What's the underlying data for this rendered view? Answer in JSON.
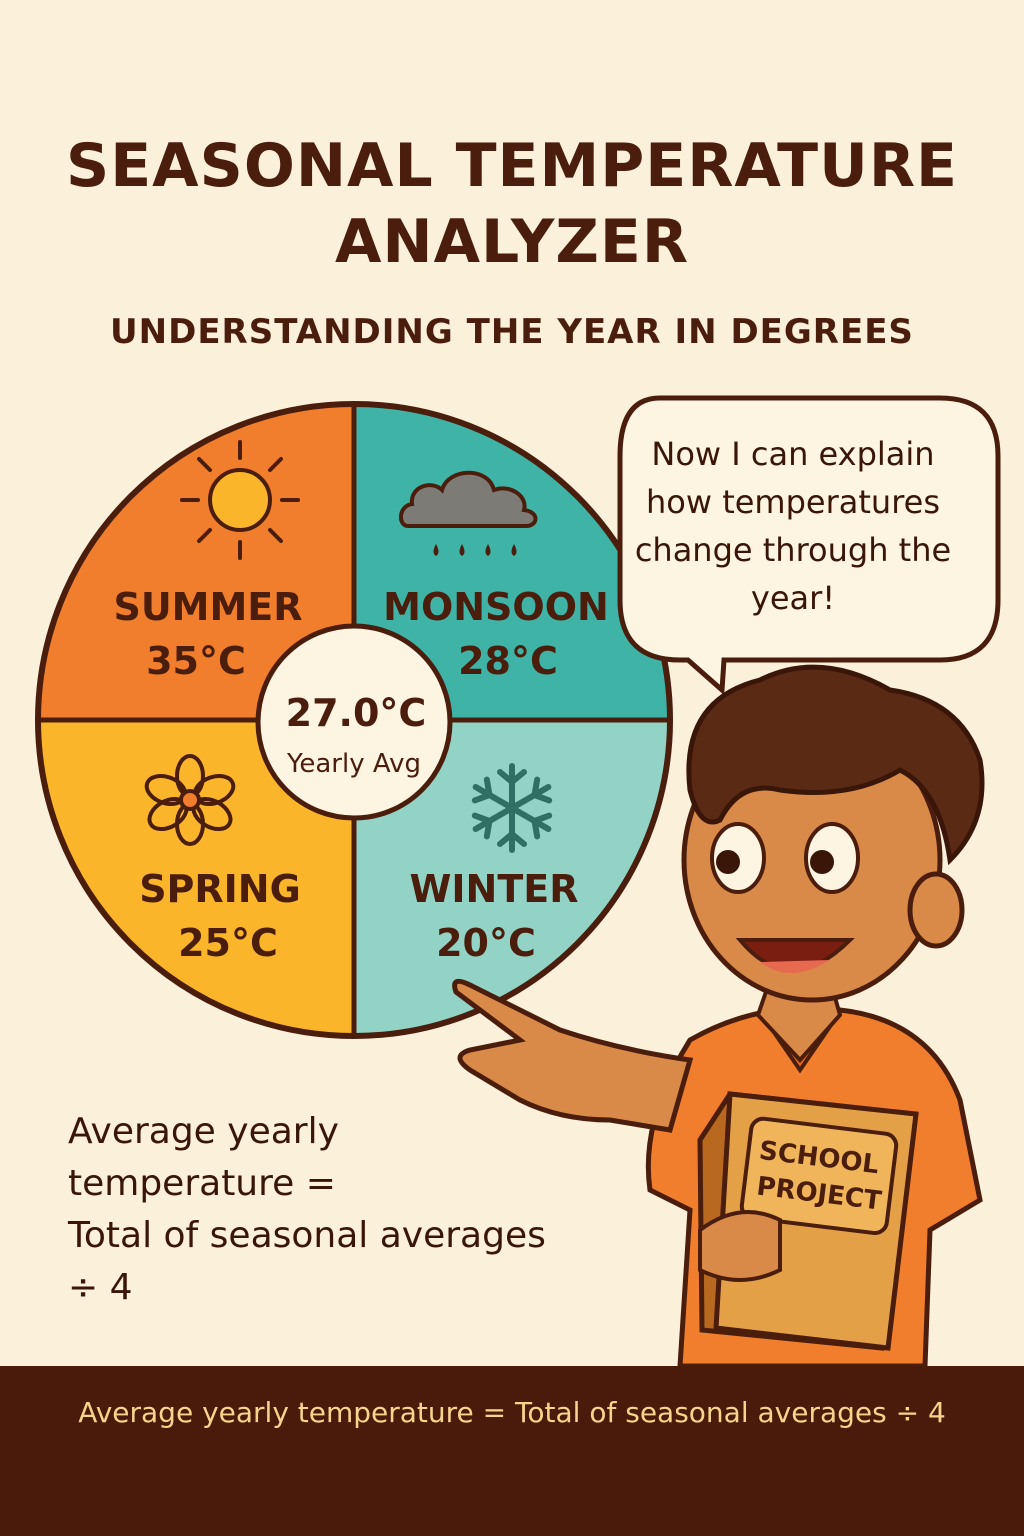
{
  "title_lines": [
    "SEASONAL TEMPERATURE",
    "ANALYZER"
  ],
  "subtitle": "UNDERSTANDING THE YEAR IN DEGREES",
  "speech_bubble": "Now I can explain how temperatures change through the year!",
  "book_label": [
    "SCHOOL",
    "PROJECT"
  ],
  "formula_lines": [
    "Average yearly",
    "temperature =",
    "Total of seasonal averages",
    "÷ 4"
  ],
  "footer": "Average yearly temperature =  Total of seasonal averages ÷ 4",
  "center": {
    "value": "27.0°C",
    "label": "Yearly Avg"
  },
  "colors": {
    "summer": "#f07e2c",
    "monsoon": "#3fb3a6",
    "spring": "#fbb52a",
    "winter": "#92d3c6",
    "outline": "#4a1d0c",
    "background": "#fbf0d9"
  },
  "chart_data": {
    "type": "pie",
    "title": "",
    "slices": [
      {
        "name": "SUMMER",
        "value": 35,
        "display": "35°C",
        "icon": "sun-icon",
        "color": "#f07e2c"
      },
      {
        "name": "MONSOON",
        "value": 28,
        "display": "28°C",
        "icon": "rain-cloud-icon",
        "color": "#3fb3a6"
      },
      {
        "name": "WINTER",
        "value": 20,
        "display": "20°C",
        "icon": "snowflake-icon",
        "color": "#92d3c6"
      },
      {
        "name": "SPRING",
        "value": 25,
        "display": "25°C",
        "icon": "flower-icon",
        "color": "#fbb52a"
      }
    ],
    "average": 27.0
  }
}
